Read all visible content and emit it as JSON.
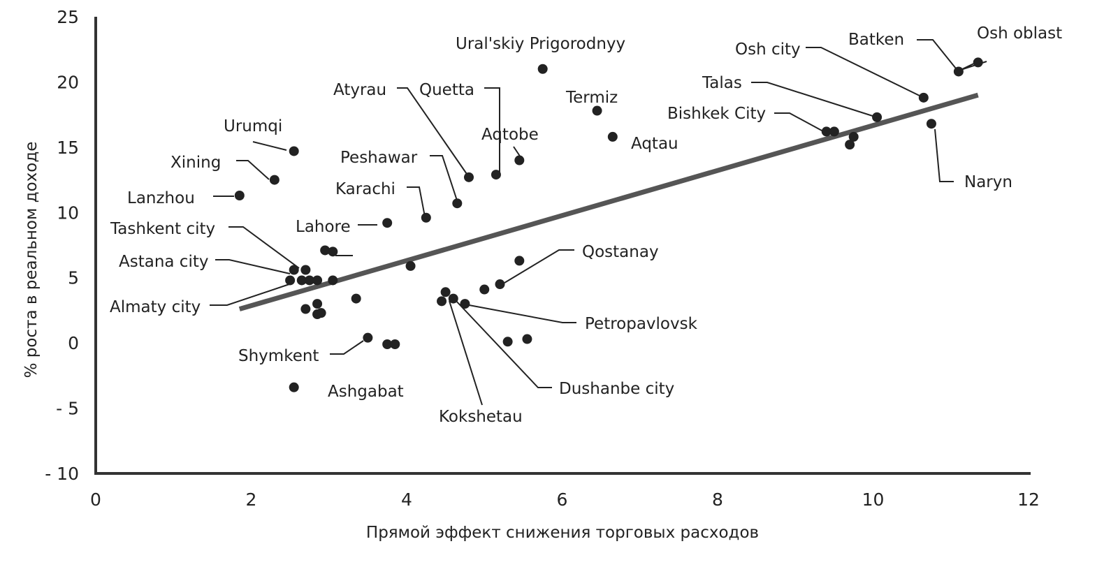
{
  "chart_data": {
    "type": "scatter",
    "xlabel": "Прямой эффект снижения торговых расходов",
    "ylabel": "% роста в реальном доходе",
    "xlim": [
      0,
      12
    ],
    "ylim": [
      -10,
      25
    ],
    "x_ticks": [
      0,
      2,
      4,
      6,
      8,
      10,
      12
    ],
    "y_ticks": [
      -10,
      -5,
      0,
      5,
      10,
      15,
      20,
      25
    ],
    "grid": false,
    "trendline": {
      "x": [
        1.85,
        11.35
      ],
      "y": [
        2.6,
        19.0
      ]
    },
    "points": [
      {
        "x": 11.35,
        "y": 21.5
      },
      {
        "x": 11.1,
        "y": 20.8
      },
      {
        "x": 10.65,
        "y": 18.8
      },
      {
        "x": 10.75,
        "y": 16.8
      },
      {
        "x": 10.05,
        "y": 17.3
      },
      {
        "x": 9.4,
        "y": 16.2
      },
      {
        "x": 9.5,
        "y": 16.2
      },
      {
        "x": 9.75,
        "y": 15.8
      },
      {
        "x": 9.7,
        "y": 15.2
      },
      {
        "x": 5.75,
        "y": 21.0
      },
      {
        "x": 6.45,
        "y": 17.8
      },
      {
        "x": 6.65,
        "y": 15.8
      },
      {
        "x": 5.45,
        "y": 14.0
      },
      {
        "x": 5.15,
        "y": 12.9
      },
      {
        "x": 4.8,
        "y": 12.7
      },
      {
        "x": 4.65,
        "y": 10.7
      },
      {
        "x": 4.25,
        "y": 9.6
      },
      {
        "x": 3.75,
        "y": 9.2
      },
      {
        "x": 2.55,
        "y": 14.7
      },
      {
        "x": 2.3,
        "y": 12.5
      },
      {
        "x": 1.85,
        "y": 11.3
      },
      {
        "x": 2.95,
        "y": 7.1
      },
      {
        "x": 3.05,
        "y": 7.0
      },
      {
        "x": 2.55,
        "y": 5.6
      },
      {
        "x": 2.7,
        "y": 5.6
      },
      {
        "x": 2.5,
        "y": 4.8
      },
      {
        "x": 2.65,
        "y": 4.8
      },
      {
        "x": 2.75,
        "y": 4.8
      },
      {
        "x": 2.85,
        "y": 4.8
      },
      {
        "x": 3.05,
        "y": 4.8
      },
      {
        "x": 2.85,
        "y": 3.0
      },
      {
        "x": 2.7,
        "y": 2.6
      },
      {
        "x": 2.85,
        "y": 2.2
      },
      {
        "x": 2.9,
        "y": 2.3
      },
      {
        "x": 3.35,
        "y": 3.4
      },
      {
        "x": 4.05,
        "y": 5.9
      },
      {
        "x": 3.5,
        "y": 0.4
      },
      {
        "x": 3.75,
        "y": -0.1
      },
      {
        "x": 3.85,
        "y": -0.1
      },
      {
        "x": 2.55,
        "y": -3.4
      },
      {
        "x": 4.5,
        "y": 3.9
      },
      {
        "x": 4.45,
        "y": 3.2
      },
      {
        "x": 4.6,
        "y": 3.4
      },
      {
        "x": 4.75,
        "y": 3.0
      },
      {
        "x": 5.0,
        "y": 4.1
      },
      {
        "x": 5.2,
        "y": 4.5
      },
      {
        "x": 5.45,
        "y": 6.3
      },
      {
        "x": 5.3,
        "y": 0.1
      },
      {
        "x": 5.55,
        "y": 0.3
      }
    ],
    "annotations": [
      "Osh oblast",
      "Batken",
      "Osh city",
      "Talas",
      "Bishkek City",
      "Naryn",
      "Ural'skiy Prigorodnyy",
      "Termiz",
      "Aqtau",
      "Aqtobe",
      "Quetta",
      "Atyrau",
      "Peshawar",
      "Karachi",
      "Lahore",
      "Urumqi",
      "Xining",
      "Lanzhou",
      "Tashkent city",
      "Astana city",
      "Almaty city",
      "Shymkent",
      "Ashgabat",
      "Qostanay",
      "Petropavlovsk",
      "Dushanbe city",
      "Kokshetau"
    ]
  }
}
